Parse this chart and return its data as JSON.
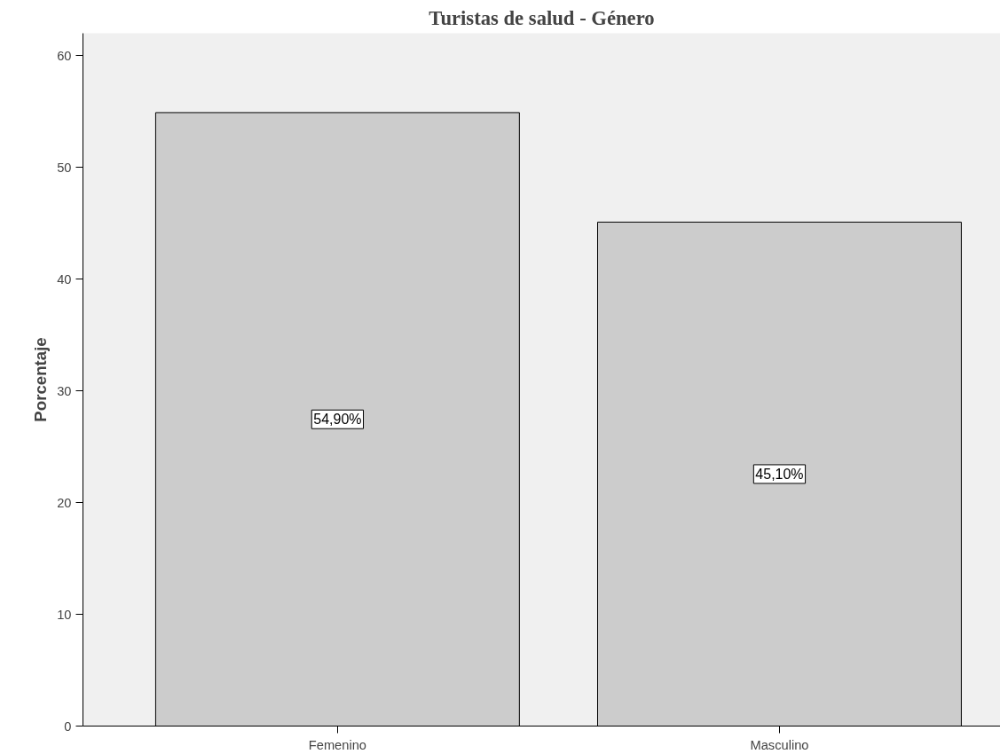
{
  "chart_data": {
    "type": "bar",
    "title": "Turistas de salud - Género",
    "ylabel": "Porcentaje",
    "categories": [
      "Femenino",
      "Masculino"
    ],
    "values": [
      54.9,
      45.1
    ],
    "value_labels": [
      "54,90%",
      "45,10%"
    ],
    "color": "#cccccc",
    "ylim": [
      0,
      62
    ],
    "yticks": [
      0,
      10,
      20,
      30,
      40,
      50,
      60
    ],
    "grid": false
  }
}
